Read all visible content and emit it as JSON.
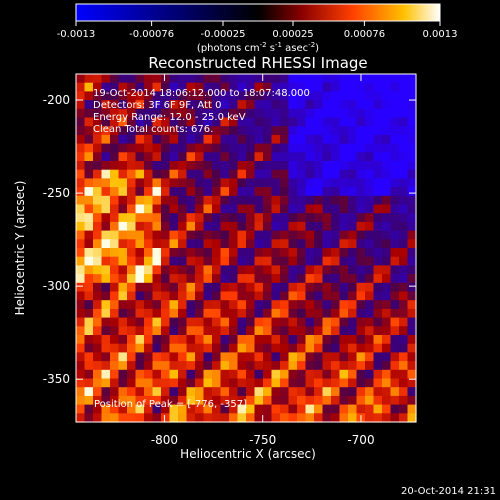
{
  "chart_data": {
    "type": "heatmap",
    "title": "Reconstructed RHESSI Image",
    "xlabel": "Heliocentric X (arcsec)",
    "ylabel": "Heliocentric Y (arcsec)",
    "x_ticks": [
      "-800",
      "-750",
      "-700"
    ],
    "x_tick_values": [
      -800,
      -750,
      -700
    ],
    "y_ticks": [
      "-200",
      "-250",
      "-300",
      "-350"
    ],
    "y_tick_values": [
      -200,
      -250,
      -300,
      -350
    ],
    "xlim": [
      -845,
      -672
    ],
    "ylim": [
      -373,
      -186
    ],
    "colorbar": {
      "ticks": [
        "-0.0013",
        "-0.00076",
        "-0.00025",
        "0.00025",
        "0.00076",
        "0.0013"
      ],
      "tick_values": [
        -0.0013,
        -0.00076,
        -0.00025,
        0.00025,
        0.00076,
        0.0013
      ],
      "range": [
        -0.0013,
        0.0013
      ],
      "unit_line1": "(photons cm",
      "unit_exp1": "-2",
      "unit_mid1": " s",
      "unit_exp2": "-1",
      "unit_mid2": " asec",
      "unit_exp3": "-2",
      "unit_end": ")"
    },
    "annotations": [
      "19-Oct-2014 18:06:12.000 to 18:07:48.000",
      "Detectors: 3F 6F 9F, Att 0",
      "Energy Range: 12.0 - 25.0 keV",
      "Clean     Total counts: 676."
    ],
    "peak_label": "Position of Peak = [-776, -357]",
    "grid": false
  },
  "footer": {
    "timestamp": "20-Oct-2014 21:31"
  },
  "colors": {
    "background": "#000000",
    "text": "#ffffff"
  }
}
